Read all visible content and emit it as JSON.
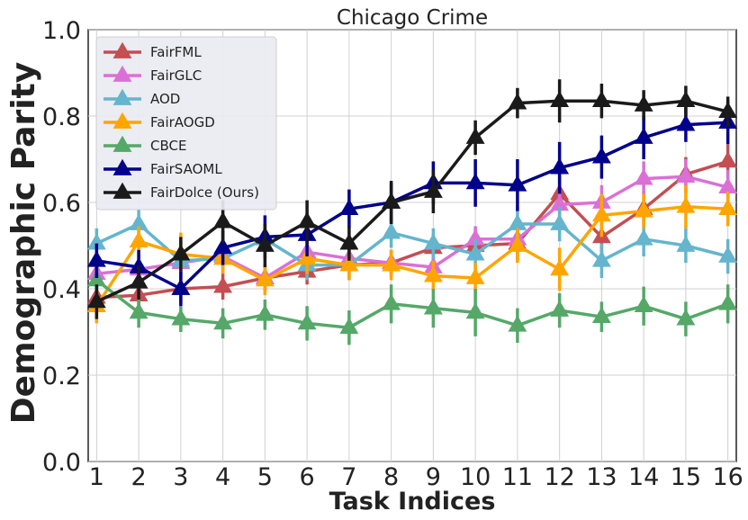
{
  "chart_data": {
    "type": "line",
    "title": "Chicago Crime",
    "xlabel": "Task Indices",
    "ylabel": "Demographic Parity",
    "xlim": [
      0.8,
      16.2
    ],
    "ylim": [
      0.0,
      1.0
    ],
    "x": [
      1,
      2,
      3,
      4,
      5,
      6,
      7,
      8,
      9,
      10,
      11,
      12,
      13,
      14,
      15,
      16
    ],
    "xticks": [
      "1",
      "2",
      "3",
      "4",
      "5",
      "6",
      "7",
      "8",
      "9",
      "10",
      "11",
      "12",
      "13",
      "14",
      "15",
      "16"
    ],
    "yticks": [
      "0.0",
      "0.2",
      "0.4",
      "0.6",
      "0.8",
      "1.0"
    ],
    "ytick_values": [
      0.0,
      0.2,
      0.4,
      0.6,
      0.8,
      1.0
    ],
    "grid": true,
    "legend_position": "top-left",
    "series": [
      {
        "name": "FairFML",
        "color": "#c44e52",
        "values": [
          0.38,
          0.385,
          0.4,
          0.405,
          0.425,
          0.44,
          0.455,
          0.46,
          0.495,
          0.5,
          0.505,
          0.62,
          0.52,
          0.585,
          0.665,
          0.695
        ],
        "errors": [
          0.03,
          0.03,
          0.03,
          0.03,
          0.03,
          0.03,
          0.03,
          0.03,
          0.03,
          0.03,
          0.04,
          0.04,
          0.04,
          0.04,
          0.04,
          0.04
        ]
      },
      {
        "name": "FairGLC",
        "color": "#da70d6",
        "values": [
          0.435,
          0.445,
          0.46,
          0.475,
          0.425,
          0.485,
          0.47,
          0.46,
          0.45,
          0.515,
          0.515,
          0.595,
          0.6,
          0.655,
          0.66,
          0.635
        ],
        "errors": [
          0.03,
          0.03,
          0.03,
          0.03,
          0.03,
          0.03,
          0.03,
          0.03,
          0.03,
          0.03,
          0.04,
          0.04,
          0.04,
          0.04,
          0.04,
          0.04
        ]
      },
      {
        "name": "AOD",
        "color": "#64b5cd",
        "values": [
          0.505,
          0.55,
          0.465,
          0.47,
          0.515,
          0.455,
          0.455,
          0.53,
          0.505,
          0.48,
          0.55,
          0.55,
          0.465,
          0.515,
          0.5,
          0.475
        ],
        "errors": [
          0.035,
          0.035,
          0.035,
          0.035,
          0.035,
          0.035,
          0.035,
          0.035,
          0.035,
          0.035,
          0.04,
          0.04,
          0.04,
          0.04,
          0.04,
          0.04
        ]
      },
      {
        "name": "FairAOGD",
        "color": "#ffa500",
        "values": [
          0.36,
          0.51,
          0.48,
          0.47,
          0.42,
          0.47,
          0.455,
          0.455,
          0.43,
          0.425,
          0.5,
          0.445,
          0.57,
          0.58,
          0.59,
          0.585
        ],
        "errors": [
          0.04,
          0.035,
          0.05,
          0.035,
          0.035,
          0.035,
          0.035,
          0.035,
          0.035,
          0.035,
          0.04,
          0.05,
          0.05,
          0.04,
          0.05,
          0.04
        ]
      },
      {
        "name": "CBCE",
        "color": "#55a868",
        "values": [
          0.42,
          0.345,
          0.33,
          0.32,
          0.34,
          0.32,
          0.31,
          0.365,
          0.355,
          0.345,
          0.315,
          0.35,
          0.335,
          0.36,
          0.33,
          0.365
        ],
        "errors": [
          0.03,
          0.035,
          0.03,
          0.035,
          0.035,
          0.04,
          0.04,
          0.045,
          0.045,
          0.055,
          0.04,
          0.04,
          0.035,
          0.045,
          0.04,
          0.045
        ]
      },
      {
        "name": "FairSAOML",
        "color": "#00008b",
        "values": [
          0.465,
          0.45,
          0.4,
          0.495,
          0.52,
          0.525,
          0.585,
          0.6,
          0.645,
          0.645,
          0.64,
          0.68,
          0.705,
          0.75,
          0.78,
          0.785
        ],
        "errors": [
          0.04,
          0.04,
          0.04,
          0.04,
          0.05,
          0.05,
          0.045,
          0.045,
          0.05,
          0.055,
          0.06,
          0.06,
          0.05,
          0.05,
          0.04,
          0.05
        ]
      },
      {
        "name": "FairDolce (Ours)",
        "color": "#1a1a1a",
        "values": [
          0.37,
          0.415,
          0.48,
          0.555,
          0.5,
          0.555,
          0.505,
          0.6,
          0.625,
          0.75,
          0.83,
          0.835,
          0.835,
          0.825,
          0.835,
          0.81
        ],
        "errors": [
          0.04,
          0.04,
          0.04,
          0.05,
          0.05,
          0.05,
          0.04,
          0.05,
          0.05,
          0.04,
          0.035,
          0.05,
          0.04,
          0.035,
          0.035,
          0.035
        ]
      }
    ]
  }
}
